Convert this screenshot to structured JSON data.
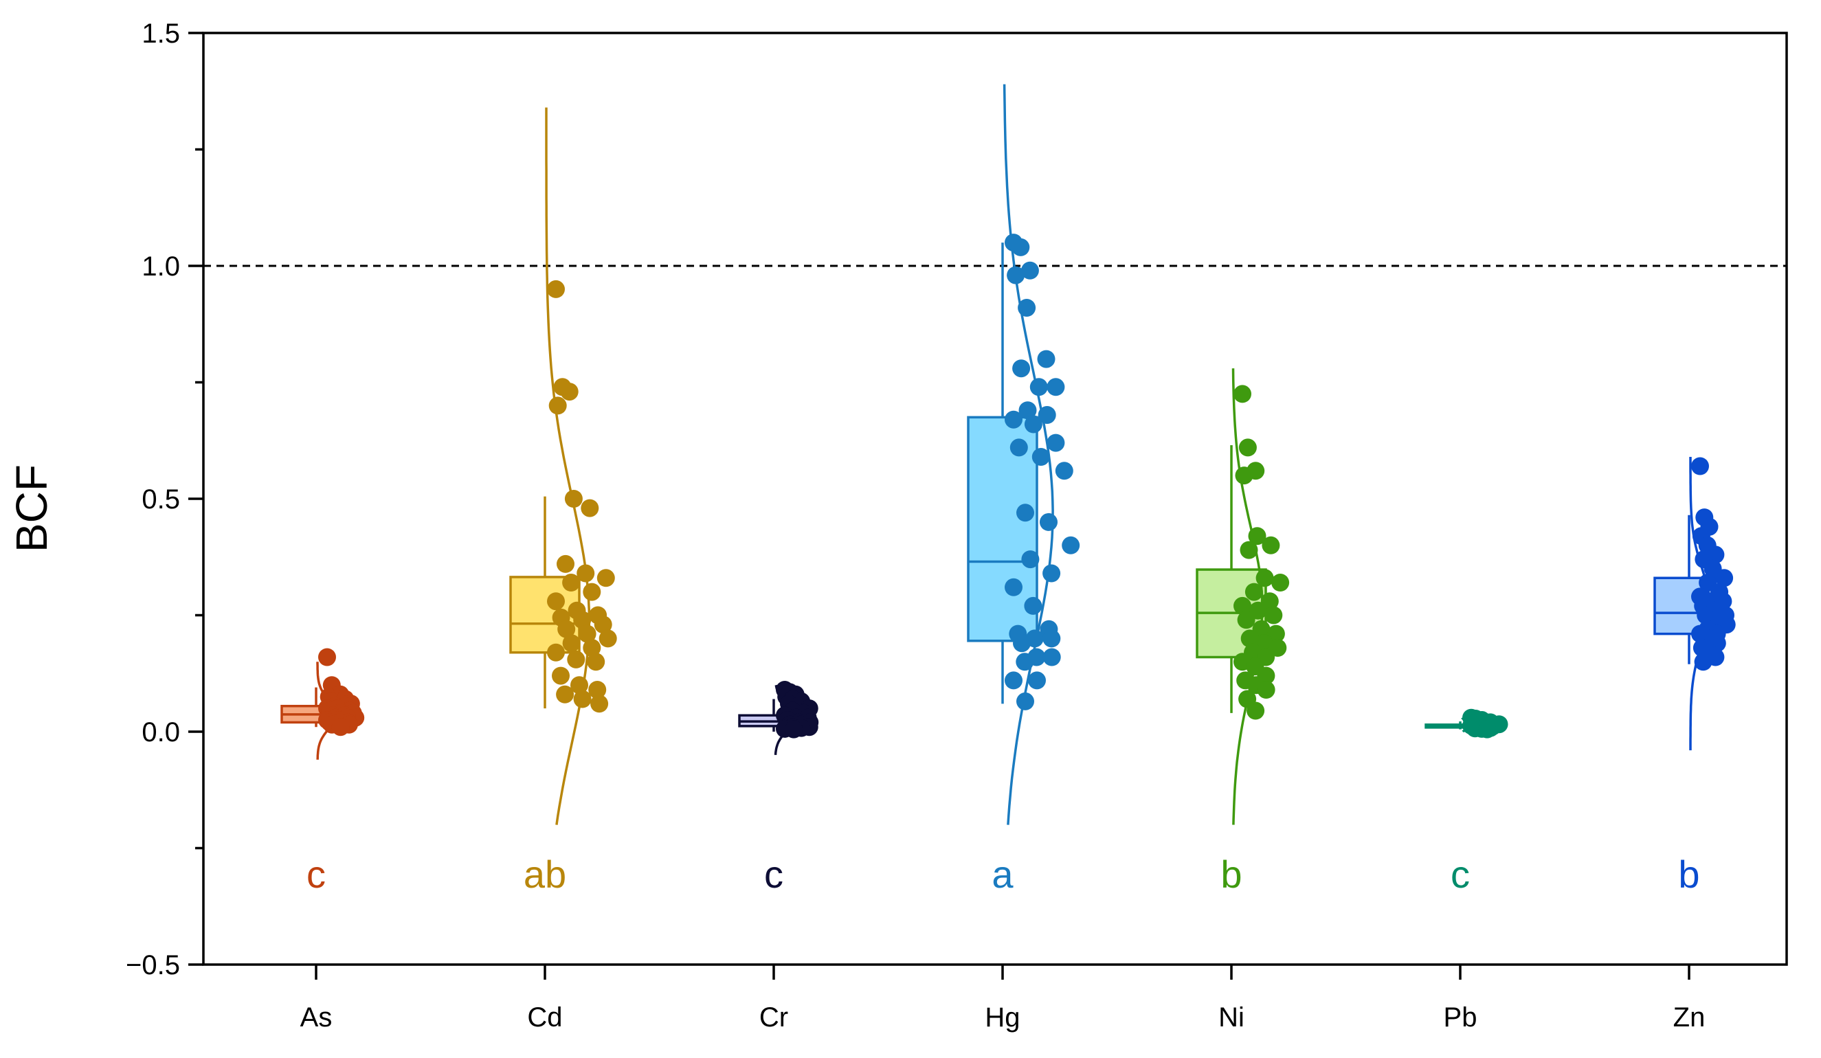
{
  "chart_data": {
    "type": "box",
    "title": "",
    "xlabel": "",
    "ylabel": "BCF",
    "ylim": [
      -0.5,
      1.5
    ],
    "yticks": [
      "-0.5",
      "0.0",
      "0.5",
      "1.0",
      "1.5"
    ],
    "reference_line": {
      "y": 1.0,
      "style": "dashed"
    },
    "categories": [
      "As",
      "Cd",
      "Cr",
      "Hg",
      "Ni",
      "Pb",
      "Zn"
    ],
    "series": [
      {
        "name": "As",
        "letter": "c",
        "color": "#C0410F",
        "fill": "#F6A77E",
        "box": {
          "min": 0.01,
          "q1": 0.02,
          "median": 0.037,
          "q3": 0.055,
          "max": 0.095
        },
        "points": [
          0.16,
          0.1,
          0.08,
          0.075,
          0.07,
          0.07,
          0.065,
          0.06,
          0.06,
          0.055,
          0.055,
          0.05,
          0.05,
          0.045,
          0.045,
          0.04,
          0.04,
          0.035,
          0.035,
          0.03,
          0.03,
          0.03,
          0.025,
          0.025,
          0.02,
          0.02,
          0.02,
          0.015,
          0.015,
          0.01
        ],
        "curve": {
          "mean": 0.037,
          "sd": 0.03,
          "range": [
            -0.06,
            0.15
          ]
        }
      },
      {
        "name": "Cd",
        "letter": "ab",
        "color": "#B8860B",
        "fill": "#FFE26E",
        "box": {
          "min": 0.05,
          "q1": 0.17,
          "median": 0.232,
          "q3": 0.332,
          "max": 0.505
        },
        "points": [
          0.95,
          0.74,
          0.73,
          0.7,
          0.5,
          0.48,
          0.36,
          0.34,
          0.33,
          0.32,
          0.3,
          0.28,
          0.26,
          0.25,
          0.245,
          0.24,
          0.23,
          0.22,
          0.21,
          0.2,
          0.19,
          0.18,
          0.17,
          0.155,
          0.15,
          0.12,
          0.1,
          0.09,
          0.08,
          0.07,
          0.06
        ],
        "curve": {
          "mean": 0.24,
          "sd": 0.26,
          "range": [
            -0.2,
            1.34
          ]
        }
      },
      {
        "name": "Cr",
        "letter": "c",
        "color": "#0D0D35",
        "fill": "#C9C9F2",
        "box": {
          "min": 0.0,
          "q1": 0.012,
          "median": 0.022,
          "q3": 0.035,
          "max": 0.07
        },
        "points": [
          0.09,
          0.085,
          0.08,
          0.075,
          0.07,
          0.065,
          0.06,
          0.055,
          0.05,
          0.045,
          0.04,
          0.035,
          0.03,
          0.03,
          0.025,
          0.02,
          0.02,
          0.015,
          0.015,
          0.01,
          0.01,
          0.008,
          0.006,
          0.005
        ],
        "curve": {
          "mean": 0.03,
          "sd": 0.028,
          "range": [
            -0.05,
            0.1
          ]
        }
      },
      {
        "name": "Hg",
        "letter": "a",
        "color": "#1A7BC0",
        "fill": "#85DAFF",
        "box": {
          "min": 0.06,
          "q1": 0.195,
          "median": 0.365,
          "q3": 0.675,
          "max": 1.05
        },
        "points": [
          1.05,
          1.04,
          0.99,
          0.98,
          0.91,
          0.8,
          0.78,
          0.74,
          0.74,
          0.69,
          0.68,
          0.67,
          0.66,
          0.62,
          0.61,
          0.59,
          0.56,
          0.47,
          0.45,
          0.4,
          0.37,
          0.34,
          0.31,
          0.27,
          0.22,
          0.21,
          0.2,
          0.2,
          0.19,
          0.16,
          0.16,
          0.15,
          0.11,
          0.11,
          0.065
        ],
        "curve": {
          "mean": 0.47,
          "sd": 0.3,
          "range": [
            -0.2,
            1.39
          ]
        }
      },
      {
        "name": "Ni",
        "letter": "b",
        "color": "#3F9A0F",
        "fill": "#C5EE9F",
        "box": {
          "min": 0.04,
          "q1": 0.16,
          "median": 0.255,
          "q3": 0.348,
          "max": 0.615
        },
        "points": [
          0.725,
          0.61,
          0.56,
          0.55,
          0.42,
          0.4,
          0.39,
          0.33,
          0.32,
          0.3,
          0.28,
          0.27,
          0.26,
          0.25,
          0.24,
          0.22,
          0.21,
          0.2,
          0.19,
          0.18,
          0.17,
          0.16,
          0.15,
          0.14,
          0.12,
          0.11,
          0.1,
          0.09,
          0.07,
          0.045
        ],
        "curve": {
          "mean": 0.27,
          "sd": 0.17,
          "range": [
            -0.2,
            0.78
          ]
        }
      },
      {
        "name": "Pb",
        "letter": "c",
        "color": "#008C6B",
        "fill": "#7FD1B9",
        "box": {
          "min": 0.005,
          "q1": 0.009,
          "median": 0.012,
          "q3": 0.015,
          "max": 0.022
        },
        "points": [
          0.03,
          0.028,
          0.025,
          0.024,
          0.022,
          0.02,
          0.019,
          0.018,
          0.016,
          0.015,
          0.014,
          0.013,
          0.012,
          0.011,
          0.01,
          0.009,
          0.008,
          0.007,
          0.006,
          0.005
        ],
        "curve": {
          "mean": 0.014,
          "sd": 0.006,
          "range": [
            0.0,
            0.03
          ]
        }
      },
      {
        "name": "Zn",
        "letter": "b",
        "color": "#0A4CCF",
        "fill": "#A6CFFF",
        "box": {
          "min": 0.145,
          "q1": 0.21,
          "median": 0.255,
          "q3": 0.33,
          "max": 0.465
        },
        "points": [
          0.57,
          0.46,
          0.44,
          0.42,
          0.4,
          0.38,
          0.37,
          0.35,
          0.33,
          0.32,
          0.3,
          0.29,
          0.28,
          0.28,
          0.27,
          0.26,
          0.25,
          0.25,
          0.24,
          0.23,
          0.22,
          0.21,
          0.21,
          0.2,
          0.19,
          0.18,
          0.17,
          0.16,
          0.15
        ],
        "curve": {
          "mean": 0.27,
          "sd": 0.08,
          "range": [
            -0.04,
            0.59
          ]
        }
      }
    ]
  }
}
